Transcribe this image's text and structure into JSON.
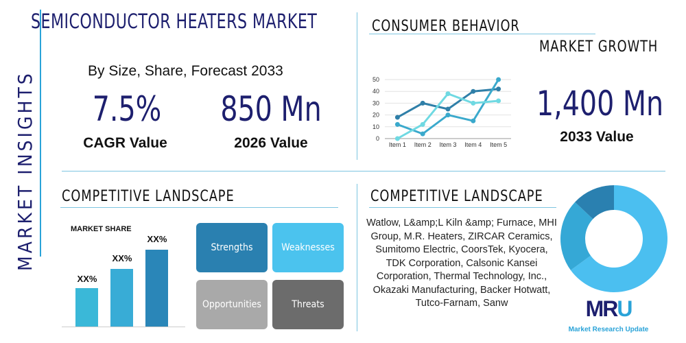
{
  "title": "SEMICONDUCTOR HEATERS MARKET",
  "side_label": "MARKET INSIGHTS",
  "subtitle": "By Size, Share, Forecast 2033",
  "stats": [
    {
      "value": "7.5%",
      "label": "CAGR Value"
    },
    {
      "value": "850 Mn",
      "label": "2026 Value"
    },
    {
      "value": "1,400 Mn",
      "label": "2033 Value"
    }
  ],
  "consumer_behavior": "CONSUMER BEHAVIOR",
  "market_growth": "MARKET GROWTH",
  "competitive_left": "COMPETITIVE LANDSCAPE",
  "competitive_right": "COMPETITIVE LANDSCAPE",
  "market_share": {
    "title": "MARKET SHARE",
    "labels": [
      "XX%",
      "XX%",
      "XX%"
    ]
  },
  "swot": [
    "Strengths",
    "Weaknesses",
    "Opportunities",
    "Threats"
  ],
  "players": "Watlow, L&amp;L Kiln &amp; Furnace, MHI Group, M.R. Heaters, ZIRCAR Ceramics, Sumitomo Electric, CoorsTek, Kyocera, TDK Corporation, Calsonic Kansei Corporation, Thermal Technology, Inc., Okazaki Manufacturing, Backer Hotwatt, Tutco-Farnam, Sanw",
  "logo": {
    "mark": "MRU",
    "text": "Market Research Update"
  },
  "colors": {
    "navy": "#1d1f6e",
    "dark": "#2a7ba6",
    "medium": "#3aaed6",
    "light": "#5fd3e6",
    "donut_light": "#4bbff0"
  },
  "chart_data": [
    {
      "type": "line",
      "categories": [
        "Item 1",
        "Item 2",
        "Item 3",
        "Item 4",
        "Item 5"
      ],
      "ylim": [
        0,
        50
      ],
      "yticks": [
        0,
        10,
        20,
        30,
        40,
        50
      ],
      "grid": true,
      "series": [
        {
          "values": [
            18,
            30,
            25,
            40,
            42
          ],
          "color": "#2f7fa8"
        },
        {
          "values": [
            12,
            4,
            20,
            15,
            50
          ],
          "color": "#3aa9cc"
        },
        {
          "values": [
            0,
            12,
            38,
            30,
            32
          ],
          "color": "#6fd9e2"
        }
      ]
    },
    {
      "type": "pie",
      "values": [
        65,
        22,
        13
      ],
      "colors": [
        "#4bbff0",
        "#35a8d6",
        "#2a80b0"
      ]
    }
  ]
}
